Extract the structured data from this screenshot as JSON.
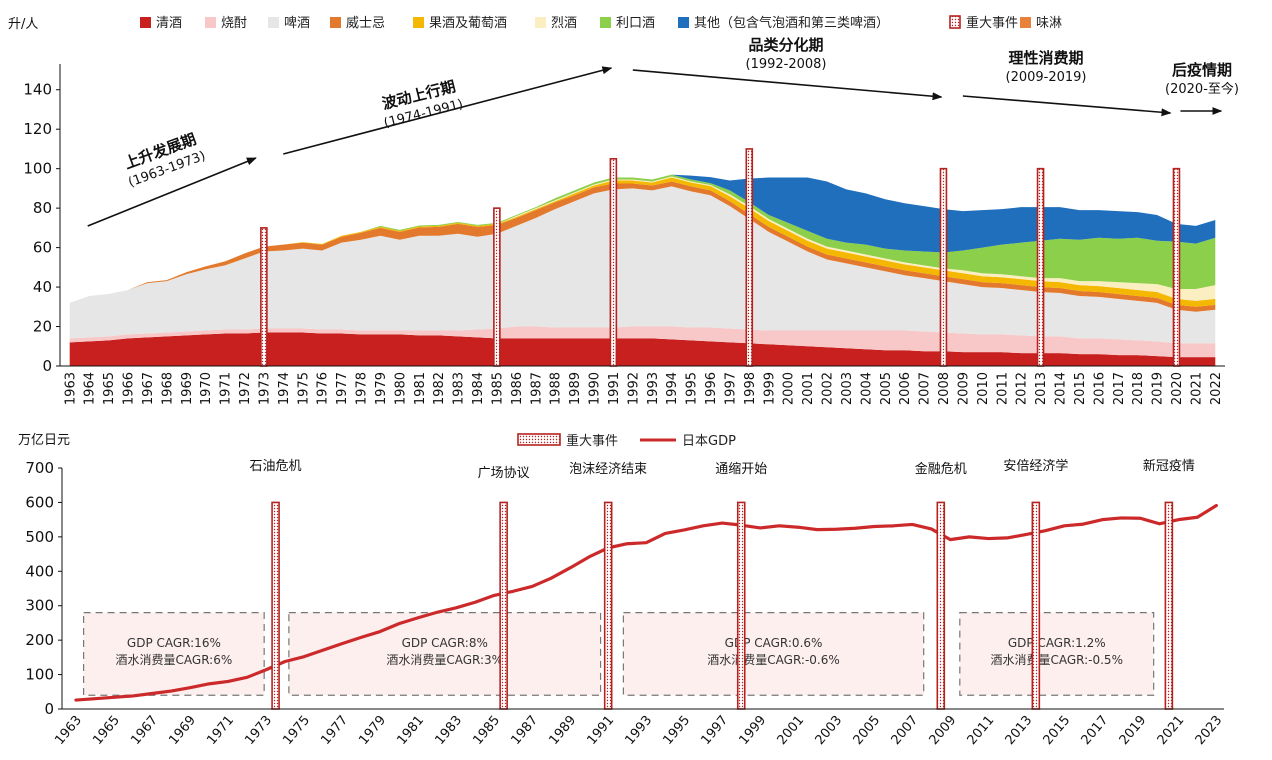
{
  "colors": {
    "清酒": "#c8201e",
    "烧酎": "#f8c8c8",
    "啤酒": "#e6e6e6",
    "威士忌": "#e3792c",
    "果酒及葡萄酒": "#f5b800",
    "烈酒": "#fbeec0",
    "利口酒": "#8ccf4a",
    "其他（包含气泡酒和第三类啤酒）": "#1f6fbd",
    "重大事件": "#b52320",
    "味淋": "#e9813a",
    "日本GDP": "#cc2a2a"
  },
  "chart_data": [
    {
      "type": "area",
      "ylabel": "升/人",
      "ylim": [
        0,
        150
      ],
      "yticks": [
        0,
        20,
        40,
        60,
        80,
        100,
        120,
        140
      ],
      "legend_placement": "top",
      "legend": [
        "清酒",
        "烧酎",
        "啤酒",
        "威士忌",
        "果酒及葡萄酒",
        "烈酒",
        "利口酒",
        "其他（包含气泡酒和第三类啤酒）",
        "重大事件",
        "味淋"
      ],
      "x": [
        "1963",
        "1964",
        "1965",
        "1966",
        "1967",
        "1968",
        "1969",
        "1970",
        "1971",
        "1972",
        "1973",
        "1974",
        "1975",
        "1976",
        "1977",
        "1978",
        "1979",
        "1980",
        "1981",
        "1982",
        "1983",
        "1984",
        "1985",
        "1986",
        "1987",
        "1988",
        "1989",
        "1990",
        "1991",
        "1992",
        "1993",
        "1994",
        "1995",
        "1996",
        "1997",
        "1998",
        "1999",
        "2000",
        "2001",
        "2002",
        "2003",
        "2004",
        "2005",
        "2006",
        "2007",
        "2008",
        "2009",
        "2010",
        "2011",
        "2012",
        "2013",
        "2014",
        "2015",
        "2016",
        "2017",
        "2018",
        "2019",
        "2020",
        "2021",
        "2022"
      ],
      "series": [
        {
          "name": "清酒",
          "values": [
            12,
            12.5,
            13,
            14,
            14.5,
            15,
            15.5,
            16,
            16.5,
            16.5,
            17,
            17,
            17,
            16.5,
            16.5,
            16,
            16,
            16,
            15.5,
            15.5,
            15,
            14.5,
            14,
            14,
            14,
            14,
            14,
            14,
            14,
            14,
            14,
            13.5,
            13,
            12.5,
            12,
            11.5,
            11,
            10.5,
            10,
            9.5,
            9,
            8.5,
            8,
            8,
            7.5,
            7.5,
            7,
            7,
            7,
            6.5,
            6.5,
            6.5,
            6,
            6,
            5.5,
            5.5,
            5,
            4.5,
            4.5,
            4.5
          ]
        },
        {
          "name": "烧酎",
          "values": [
            2,
            2,
            2,
            2,
            2,
            2,
            2,
            2,
            2,
            2,
            2,
            2,
            2,
            2,
            2,
            2,
            2,
            2,
            2.5,
            2.5,
            3,
            4,
            5,
            6,
            6,
            5.5,
            5.5,
            5.5,
            5.5,
            6,
            6,
            6.5,
            6.5,
            7,
            7,
            7,
            7,
            7.5,
            8,
            8.5,
            9,
            9.5,
            10,
            10,
            10,
            9.5,
            9.5,
            9,
            9,
            9,
            8.5,
            8.5,
            8,
            8,
            8,
            7.5,
            7.5,
            7,
            7,
            7
          ]
        },
        {
          "name": "啤酒",
          "values": [
            18,
            21,
            21.5,
            22.5,
            25.5,
            26,
            29,
            31,
            32.5,
            36,
            39,
            39.5,
            40.5,
            40,
            44,
            46,
            48,
            46,
            48,
            48,
            49,
            47,
            48,
            51,
            55,
            60,
            64,
            68,
            70,
            70,
            69,
            71,
            69,
            67,
            62,
            56,
            50,
            45,
            40,
            36,
            34,
            32,
            30,
            28,
            27,
            26,
            25,
            24,
            23.5,
            23,
            22.5,
            22,
            21.5,
            21,
            20.5,
            20,
            19.5,
            17,
            16,
            17
          ]
        },
        {
          "name": "威士忌",
          "values": [
            0,
            0,
            0,
            0,
            0.5,
            0.5,
            1,
            1.5,
            2,
            2.5,
            2.5,
            3,
            3,
            3,
            3,
            3.5,
            4,
            4,
            4.2,
            4.5,
            5,
            5,
            4.5,
            4,
            4,
            3.5,
            3,
            3,
            3,
            2.5,
            2.5,
            2.5,
            2.5,
            2.5,
            2.5,
            2.5,
            2.5,
            2.5,
            2.5,
            2.5,
            2.5,
            2.5,
            2.5,
            2.5,
            2.5,
            2.5,
            2.5,
            2.5,
            2.5,
            2.5,
            2.5,
            2.5,
            2.5,
            2.5,
            2.5,
            2.5,
            2.5,
            2.5,
            2.5,
            2.5
          ]
        },
        {
          "name": "果酒及葡萄酒",
          "values": [
            0,
            0,
            0,
            0,
            0,
            0,
            0,
            0,
            0,
            0,
            0,
            0,
            0.3,
            0.3,
            0.5,
            0.5,
            0.5,
            0.5,
            0.5,
            0.5,
            0.5,
            0.5,
            0.5,
            0.5,
            0.5,
            0.5,
            1,
            1,
            1.5,
            1.5,
            1.5,
            2,
            2,
            2.2,
            2.5,
            3,
            3,
            3,
            3,
            3,
            3,
            3,
            3,
            3,
            3,
            3,
            3,
            3,
            3,
            3,
            3,
            3,
            3,
            3,
            3,
            3,
            3,
            3,
            3,
            3
          ]
        },
        {
          "name": "烈酒",
          "values": [
            0,
            0,
            0,
            0,
            0,
            0,
            0,
            0,
            0,
            0,
            0,
            0,
            0,
            0,
            0,
            0,
            0,
            0,
            0,
            0,
            0,
            0,
            0,
            0.5,
            0.5,
            0.5,
            0.5,
            0.5,
            0.5,
            0.5,
            0.5,
            0.5,
            0.5,
            0.5,
            1,
            1,
            1,
            1,
            1,
            1,
            1,
            1,
            1,
            1,
            1,
            1,
            1.5,
            1.5,
            1.5,
            1.5,
            1.5,
            2,
            2,
            2.5,
            3,
            3.5,
            4,
            5,
            6,
            7
          ]
        },
        {
          "name": "利口酒",
          "values": [
            0,
            0,
            0,
            0,
            0,
            0,
            0,
            0,
            0,
            0,
            0,
            0,
            0,
            0,
            0,
            0,
            0.5,
            0.5,
            0.5,
            0.5,
            0.5,
            0.5,
            0.5,
            0.5,
            0.5,
            1,
            1,
            1,
            1,
            1,
            1,
            1,
            1,
            1,
            2,
            2,
            2,
            3,
            4,
            4,
            4,
            5,
            5,
            6,
            7,
            8,
            10,
            13,
            15,
            17,
            19,
            20,
            21,
            22,
            22,
            23,
            22,
            24,
            23,
            24
          ]
        },
        {
          "name": "其他（包含气泡酒和第三类啤酒）",
          "values": [
            0,
            0,
            0,
            0,
            0,
            0,
            0,
            0,
            0,
            0,
            0,
            0,
            0,
            0,
            0,
            0,
            0,
            0,
            0,
            0,
            0,
            0,
            0,
            0,
            0,
            0,
            0,
            0,
            0,
            0,
            0,
            0,
            2,
            3,
            5,
            12,
            19,
            23,
            27,
            29,
            27,
            26,
            25,
            24,
            23,
            22,
            20,
            19,
            18,
            18,
            17,
            16,
            15,
            14,
            14,
            13,
            13,
            9,
            9,
            9
          ]
        },
        {
          "name": "味淋",
          "values": [
            0,
            0,
            0,
            0,
            0,
            0,
            0,
            0,
            0,
            0,
            0,
            0,
            0,
            0,
            0,
            0,
            0,
            0,
            0,
            0,
            0,
            0,
            0,
            0,
            0,
            0,
            0,
            0,
            0,
            0,
            0,
            0,
            0,
            0,
            0,
            0,
            0,
            0,
            0,
            0,
            0,
            0,
            0,
            0,
            0,
            0,
            0,
            0,
            0,
            0,
            0,
            0,
            0,
            0,
            0,
            0,
            0,
            0,
            0,
            0
          ]
        }
      ],
      "event_years": [
        "1973",
        "1985",
        "1991",
        "1998",
        "2008",
        "2013",
        "2020"
      ],
      "event_heights": [
        70,
        80,
        105,
        110,
        100,
        100,
        100
      ],
      "phases": [
        {
          "name": "上升发展期",
          "years": "(1963-1973)"
        },
        {
          "name": "波动上行期",
          "years": "(1974-1991)"
        },
        {
          "name": "品类分化期",
          "years": "(1992-2008)"
        },
        {
          "name": "理性消费期",
          "years": "(2009-2019)"
        },
        {
          "name": "后疫情期",
          "years": "(2020-至今)"
        }
      ]
    },
    {
      "type": "line",
      "ylabel": "万亿日元",
      "ylim": [
        0,
        700
      ],
      "yticks": [
        0,
        100,
        200,
        300,
        400,
        500,
        600,
        700
      ],
      "legend_placement": "top-center",
      "legend": [
        "重大事件",
        "日本GDP"
      ],
      "x": [
        1963,
        1964,
        1965,
        1966,
        1967,
        1968,
        1969,
        1970,
        1971,
        1972,
        1973,
        1974,
        1975,
        1976,
        1977,
        1978,
        1979,
        1980,
        1981,
        1982,
        1983,
        1984,
        1985,
        1986,
        1987,
        1988,
        1989,
        1990,
        1991,
        1992,
        1993,
        1994,
        1995,
        1996,
        1997,
        1998,
        1999,
        2000,
        2001,
        2002,
        2003,
        2004,
        2005,
        2006,
        2007,
        2008,
        2009,
        2010,
        2011,
        2012,
        2013,
        2014,
        2015,
        2016,
        2017,
        2018,
        2019,
        2020,
        2021,
        2022,
        2023
      ],
      "x_tick_labels": [
        "1963",
        "1965",
        "1967",
        "1969",
        "1971",
        "1973",
        "1975",
        "1977",
        "1979",
        "1981",
        "1983",
        "1985",
        "1987",
        "1989",
        "1991",
        "1993",
        "1995",
        "1997",
        "1999",
        "2001",
        "2003",
        "2005",
        "2007",
        "2009",
        "2011",
        "2013",
        "2015",
        "2017",
        "2019",
        "2021",
        "2023"
      ],
      "series": [
        {
          "name": "日本GDP",
          "values": [
            26,
            30,
            34,
            38,
            45,
            52,
            62,
            73,
            80,
            92,
            114,
            138,
            152,
            171,
            190,
            208,
            225,
            248,
            265,
            281,
            294,
            310,
            330,
            342,
            356,
            380,
            410,
            442,
            468,
            480,
            483,
            510,
            520,
            532,
            540,
            534,
            526,
            532,
            528,
            521,
            522,
            525,
            530,
            532,
            536,
            523,
            492,
            500,
            495,
            497,
            507,
            518,
            532,
            537,
            550,
            555,
            554,
            538,
            550,
            557,
            591
          ]
        }
      ],
      "events": [
        {
          "year": 1973.5,
          "label": "石油危机"
        },
        {
          "year": 1985.5,
          "label": "广场协议"
        },
        {
          "year": 1991,
          "label": "泡沫经济结束"
        },
        {
          "year": 1998,
          "label": "通缩开始"
        },
        {
          "year": 2008.5,
          "label": "金融危机"
        },
        {
          "year": 2013.5,
          "label": "安倍经济学"
        },
        {
          "year": 2020.5,
          "label": "新冠疫情"
        }
      ],
      "event_height": 600,
      "cagr_boxes": [
        {
          "line1": "GDP CAGR:16%",
          "line2": "酒水消费量CAGR:6%"
        },
        {
          "line1": "GDP CAGR:8%",
          "line2": "酒水消费量CAGR:3%"
        },
        {
          "line1": "GDP CAGR:0.6%",
          "line2": "酒水消费量CAGR:-0.6%"
        },
        {
          "line1": "GDP CAGR:1.2%",
          "line2": "酒水消费量CAGR:-0.5%"
        }
      ]
    }
  ]
}
